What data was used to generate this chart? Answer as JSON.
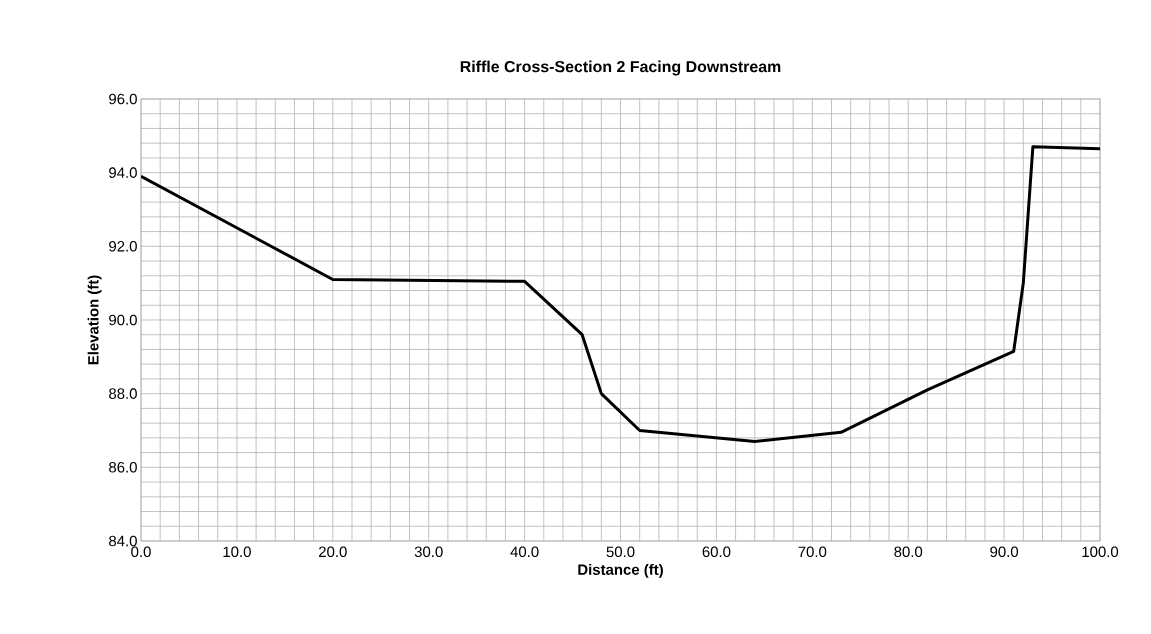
{
  "chart_data": {
    "type": "line",
    "title": "Riffle Cross-Section 2 Facing Downstream",
    "xlabel": "Distance (ft)",
    "ylabel": "Elevation (ft)",
    "x": [
      0,
      20,
      40,
      46,
      48,
      52,
      64,
      73,
      82,
      91,
      92,
      93,
      100
    ],
    "series": [
      {
        "color": "#000000",
        "values": [
          93.9,
          91.1,
          91.05,
          89.6,
          88.0,
          87.0,
          86.7,
          86.95,
          88.1,
          89.15,
          91.0,
          94.7,
          94.65
        ]
      }
    ],
    "xlim": [
      0,
      100
    ],
    "ylim": [
      84,
      96
    ],
    "xticks": [
      {
        "value": 0,
        "label": "0.0"
      },
      {
        "value": 10,
        "label": "10.0"
      },
      {
        "value": 20,
        "label": "20.0"
      },
      {
        "value": 30,
        "label": "30.0"
      },
      {
        "value": 40,
        "label": "40.0"
      },
      {
        "value": 50,
        "label": "50.0"
      },
      {
        "value": 60,
        "label": "60.0"
      },
      {
        "value": 70,
        "label": "70.0"
      },
      {
        "value": 80,
        "label": "80.0"
      },
      {
        "value": 90,
        "label": "90.0"
      },
      {
        "value": 100,
        "label": "100.0"
      }
    ],
    "yticks": [
      {
        "value": 84,
        "label": "84.0"
      },
      {
        "value": 86,
        "label": "86.0"
      },
      {
        "value": 88,
        "label": "88.0"
      },
      {
        "value": 90,
        "label": "90.0"
      },
      {
        "value": 92,
        "label": "92.0"
      },
      {
        "value": 94,
        "label": "94.0"
      },
      {
        "value": 96,
        "label": "96.0"
      }
    ],
    "grid": true,
    "marker": "none",
    "line_style": "solid"
  }
}
